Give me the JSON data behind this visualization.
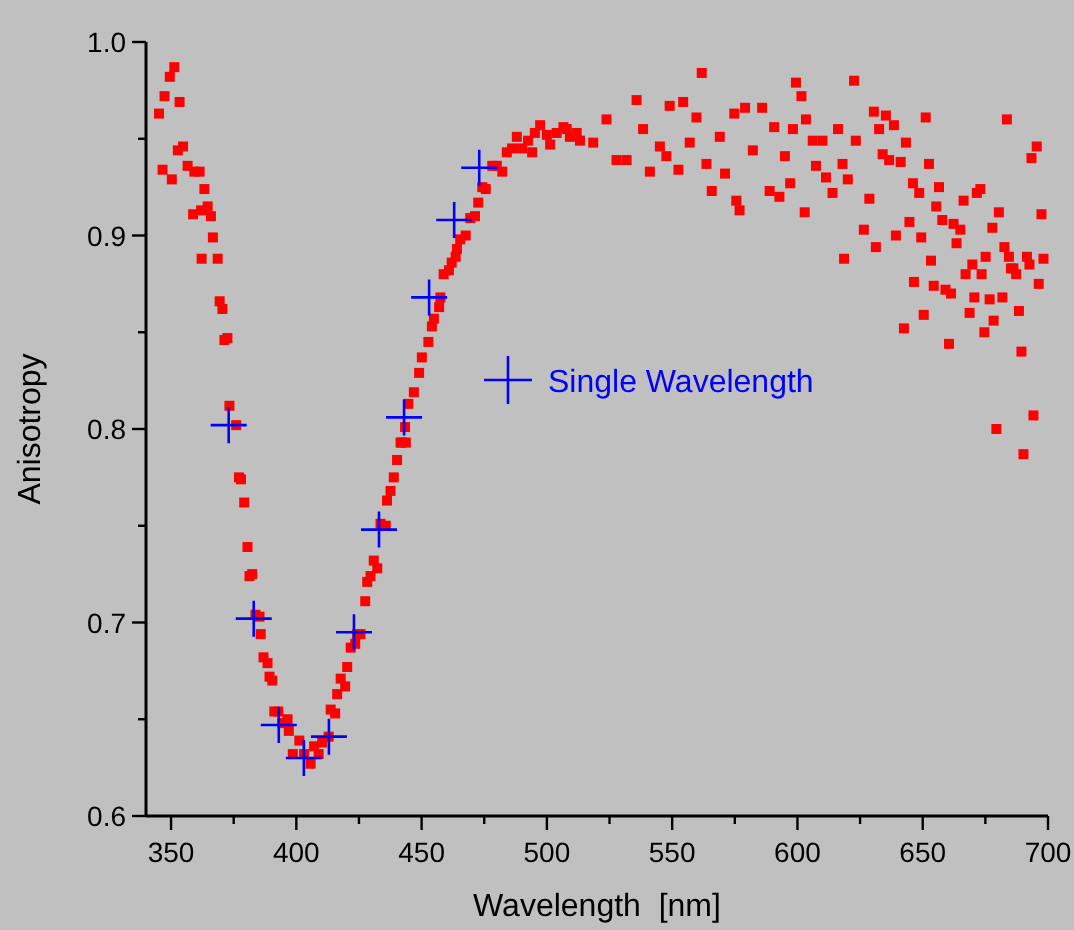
{
  "chart_data": {
    "type": "scatter",
    "xlabel": "Wavelength  [nm]",
    "ylabel": "Anisotropy",
    "xlim": [
      340,
      700
    ],
    "xticks": [
      350,
      {
        "value": 375,
        "label": null
      },
      400,
      {
        "value": 425,
        "label": null
      },
      450,
      {
        "value": 475,
        "label": null
      },
      500,
      {
        "value": 525,
        "label": null
      },
      550,
      {
        "value": 575,
        "label": null
      },
      600,
      {
        "value": 625,
        "label": null
      },
      650,
      {
        "value": 675,
        "label": null
      },
      700
    ],
    "ylim": [
      0.6,
      1.0
    ],
    "yticks": [
      {
        "value": 0.6,
        "label": "0.6"
      },
      {
        "value": 0.65,
        "label": null
      },
      {
        "value": 0.7,
        "label": "0.7"
      },
      {
        "value": 0.75,
        "label": null
      },
      {
        "value": 0.8,
        "label": "0.8"
      },
      {
        "value": 0.85,
        "label": null
      },
      {
        "value": 0.9,
        "label": "0.9"
      },
      {
        "value": 0.95,
        "label": null
      },
      {
        "value": 1.0,
        "label": "1.0"
      }
    ],
    "grid": false,
    "legend": "center",
    "series": [
      {
        "color": "#ff0000",
        "marker": "square",
        "x": [
          345.2,
          346.6,
          347.4,
          350.3,
          349.5,
          351.3,
          353.4,
          352.7,
          354.8,
          356.6,
          359.3,
          361.4,
          363.3,
          358.8,
          362,
          364.6,
          365.9,
          366.7,
          362.2,
          368.6,
          369.4,
          370.5,
          371.3,
          372.5,
          373.3,
          376,
          377.1,
          377.9,
          379.2,
          380.5,
          381.3,
          382.4,
          383.7,
          385.3,
          385.8,
          386.9,
          388.5,
          389.3,
          390.4,
          391.2,
          392.8,
          394.4,
          396.5,
          397,
          398.6,
          401.2,
          403.1,
          405.7,
          407.1,
          408.9,
          410.3,
          412.9,
          413.7,
          415.5,
          416.3,
          417.7,
          419.5,
          420.3,
          421.7,
          423.5,
          424.3,
          425.6,
          427.5,
          428.3,
          429.6,
          430.9,
          432.3,
          433.6,
          435.7,
          436.2,
          437.6,
          438.9,
          440.2,
          442.1,
          443.7,
          441.6,
          443.4,
          444.7,
          446.9,
          449,
          450.1,
          452.7,
          454.1,
          454.9,
          457,
          457.5,
          458.8,
          460.9,
          462,
          463.6,
          464.1,
          465.4,
          467.6,
          469.4,
          471.3,
          472.6,
          474.2,
          475.6,
          478.2,
          480,
          482.2,
          484,
          486.1,
          488,
          490.1,
          492.5,
          494.1,
          495.2,
          497.3,
          500,
          501.3,
          503.9,
          506.6,
          509.2,
          511.9,
          507.9,
          513.2,
          518.5,
          523.8,
          527.8,
          531.8,
          535.8,
          538.4,
          541.1,
          545.1,
          547.7,
          549,
          552.5,
          554.4,
          557,
          559.7,
          561.8,
          563.7,
          565.8,
          569,
          571.1,
          574.8,
          575.6,
          576.9,
          579.1,
          582.2,
          585.9,
          588.9,
          590.7,
          592.8,
          595,
          597.1,
          598.2,
          599.4,
          601.6,
          602.9,
          603.4,
          606.1,
          607.4,
          610,
          611.4,
          614,
          616.2,
          618,
          618.6,
          620.1,
          622.6,
          623.3,
          626.5,
          628.7,
          630.5,
          631.3,
          632.6,
          634,
          635.3,
          636.6,
          638.5,
          639.3,
          641.2,
          642.5,
          643.3,
          644.7,
          646.1,
          646.5,
          648.6,
          649.4,
          650.4,
          651.2,
          652.5,
          653.3,
          654.4,
          655.4,
          656.5,
          657.8,
          659.1,
          660.5,
          661.3,
          662.3,
          663.5,
          665,
          666.3,
          667.1,
          668.7,
          669.8,
          670.6,
          671.6,
          673,
          673.5,
          674.6,
          675.1,
          676.7,
          677.8,
          678.3,
          679.4,
          680.4,
          681.8,
          682.6,
          683.6,
          684.4,
          685.2,
          686.2,
          687.3,
          688.4,
          689.4,
          690.2,
          691.6,
          692.6,
          693.4,
          694.2,
          695.5,
          696.3,
          697.4,
          698.2
        ],
        "values": [
          0.963,
          0.934,
          0.972,
          0.929,
          0.982,
          0.987,
          0.969,
          0.944,
          0.946,
          0.936,
          0.933,
          0.933,
          0.924,
          0.911,
          0.913,
          0.915,
          0.91,
          0.899,
          0.888,
          0.888,
          0.866,
          0.862,
          0.846,
          0.847,
          0.812,
          0.802,
          0.775,
          0.774,
          0.762,
          0.739,
          0.724,
          0.725,
          0.704,
          0.703,
          0.694,
          0.682,
          0.679,
          0.672,
          0.67,
          0.654,
          0.654,
          0.648,
          0.65,
          0.644,
          0.632,
          0.639,
          0.632,
          0.627,
          0.636,
          0.632,
          0.638,
          0.641,
          0.655,
          0.653,
          0.663,
          0.671,
          0.667,
          0.677,
          0.687,
          0.689,
          0.694,
          0.694,
          0.711,
          0.721,
          0.724,
          0.732,
          0.728,
          0.751,
          0.75,
          0.763,
          0.768,
          0.775,
          0.784,
          0.793,
          0.793,
          0.793,
          0.801,
          0.813,
          0.819,
          0.829,
          0.837,
          0.845,
          0.853,
          0.857,
          0.863,
          0.868,
          0.88,
          0.882,
          0.886,
          0.889,
          0.893,
          0.898,
          0.9,
          0.909,
          0.91,
          0.917,
          0.925,
          0.924,
          0.936,
          0.936,
          0.933,
          0.943,
          0.945,
          0.951,
          0.945,
          0.949,
          0.943,
          0.953,
          0.957,
          0.952,
          0.947,
          0.953,
          0.956,
          0.951,
          0.953,
          0.955,
          0.949,
          0.948,
          0.96,
          0.939,
          0.939,
          0.97,
          0.955,
          0.933,
          0.946,
          0.941,
          0.967,
          0.934,
          0.969,
          0.948,
          0.961,
          0.984,
          0.937,
          0.923,
          0.951,
          0.932,
          0.963,
          0.918,
          0.913,
          0.966,
          0.944,
          0.966,
          0.923,
          0.956,
          0.92,
          0.941,
          0.927,
          0.955,
          0.979,
          0.972,
          0.912,
          0.96,
          0.949,
          0.936,
          0.949,
          0.93,
          0.922,
          0.955,
          0.937,
          0.888,
          0.929,
          0.98,
          0.949,
          0.903,
          0.919,
          0.964,
          0.894,
          0.955,
          0.942,
          0.962,
          0.939,
          0.957,
          0.9,
          0.938,
          0.852,
          0.948,
          0.907,
          0.927,
          0.876,
          0.922,
          0.899,
          0.859,
          0.961,
          0.937,
          0.887,
          0.874,
          0.915,
          0.925,
          0.908,
          0.872,
          0.844,
          0.87,
          0.906,
          0.896,
          0.903,
          0.918,
          0.88,
          0.86,
          0.885,
          0.868,
          0.922,
          0.924,
          0.88,
          0.85,
          0.889,
          0.867,
          0.904,
          0.856,
          0.8,
          0.912,
          0.868,
          0.894,
          0.96,
          0.889,
          0.883,
          0.883,
          0.88,
          0.861,
          0.84,
          0.787,
          0.889,
          0.885,
          0.94,
          0.807,
          0.946,
          0.875,
          0.911,
          0.888
        ]
      },
      {
        "name": "Single Wavelength",
        "color": "#0000ff",
        "marker": "cross",
        "x": [
          373,
          383,
          393,
          403,
          413,
          423,
          433,
          443,
          453,
          463,
          473
        ],
        "values": [
          0.802,
          0.702,
          0.647,
          0.63,
          0.641,
          0.695,
          0.748,
          0.806,
          0.868,
          0.908,
          0.935
        ]
      }
    ]
  }
}
